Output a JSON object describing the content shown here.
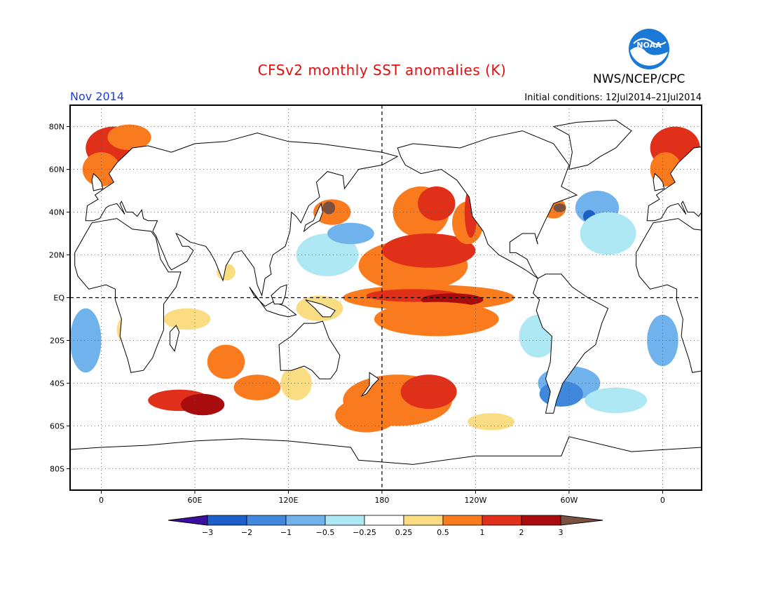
{
  "header": {
    "title": "CFSv2 monthly SST anomalies (K)",
    "valid_month": "Nov 2014",
    "initial_conditions": "Initial conditions: 12Jul2014–21Jul2014",
    "agency": "NWS/NCEP/CPC",
    "logo_text": "NOAA"
  },
  "map": {
    "lat_labels": [
      "80N",
      "60N",
      "40N",
      "20N",
      "EQ",
      "20S",
      "40S",
      "60S",
      "80S"
    ],
    "lat_values": [
      80,
      60,
      40,
      20,
      0,
      -20,
      -40,
      -60,
      -80
    ],
    "lon_labels": [
      "0",
      "60E",
      "120E",
      "180",
      "120W",
      "60W",
      "0"
    ],
    "lon_values": [
      0,
      60,
      120,
      180,
      240,
      300,
      360
    ],
    "lon_range": [
      -20,
      385
    ],
    "lat_range": [
      -90,
      90
    ],
    "colors": {
      "land": "#ffffff",
      "coast": "#000000",
      "grid": "#555555"
    }
  },
  "colorbar": {
    "labels": [
      "−3",
      "−2",
      "−1",
      "−0.5",
      "−0.25",
      "0.25",
      "0.5",
      "1",
      "2",
      "3"
    ],
    "colors": [
      "#3a0fa0",
      "#1c5fc8",
      "#3f88dc",
      "#6fb2ec",
      "#aee8f4",
      "#ffffff",
      "#fadc82",
      "#fa7a1e",
      "#e0301a",
      "#a80c0c",
      "#7a5040"
    ]
  }
}
